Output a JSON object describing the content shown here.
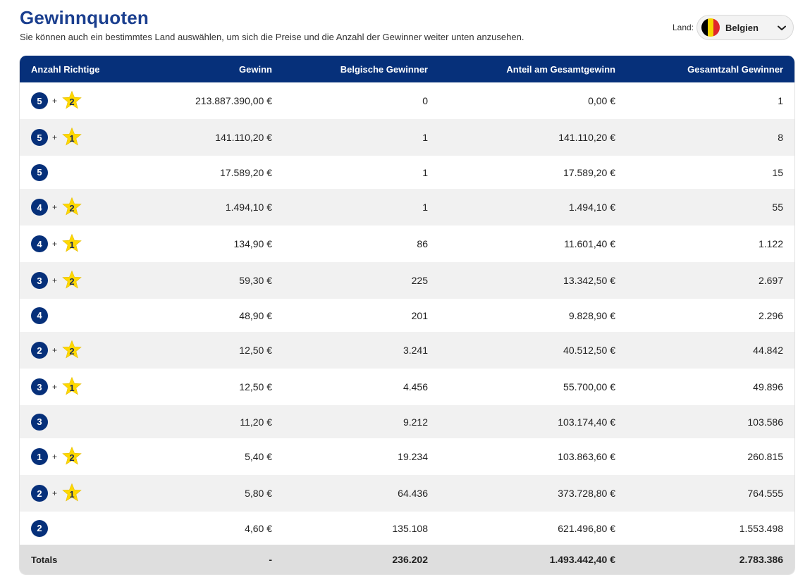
{
  "header": {
    "title": "Gewinnquoten",
    "subtitle": "Sie können auch ein bestimmtes Land auswählen, um sich die Preise und die Anzahl der Gewinner weiter unten anzusehen."
  },
  "country": {
    "label": "Land:",
    "selected": "Belgien",
    "flag_colors": [
      "#000000",
      "#f5d500",
      "#e0262b"
    ]
  },
  "colors": {
    "header_bg": "#06307a",
    "ball": "#06307a",
    "star": "#ffd900"
  },
  "table": {
    "columns": [
      "Anzahl Richtige",
      "Gewinn",
      "Belgische Gewinner",
      "Anteil am Gesamtgewinn",
      "Gesamtzahl Gewinner"
    ],
    "rows": [
      {
        "main": "5",
        "star": "2",
        "prize": "213.887.390,00 €",
        "local": "0",
        "share": "0,00 €",
        "total": "1"
      },
      {
        "main": "5",
        "star": "1",
        "prize": "141.110,20 €",
        "local": "1",
        "share": "141.110,20 €",
        "total": "8"
      },
      {
        "main": "5",
        "star": null,
        "prize": "17.589,20 €",
        "local": "1",
        "share": "17.589,20 €",
        "total": "15"
      },
      {
        "main": "4",
        "star": "2",
        "prize": "1.494,10 €",
        "local": "1",
        "share": "1.494,10 €",
        "total": "55"
      },
      {
        "main": "4",
        "star": "1",
        "prize": "134,90 €",
        "local": "86",
        "share": "11.601,40 €",
        "total": "1.122"
      },
      {
        "main": "3",
        "star": "2",
        "prize": "59,30 €",
        "local": "225",
        "share": "13.342,50 €",
        "total": "2.697"
      },
      {
        "main": "4",
        "star": null,
        "prize": "48,90 €",
        "local": "201",
        "share": "9.828,90 €",
        "total": "2.296"
      },
      {
        "main": "2",
        "star": "2",
        "prize": "12,50 €",
        "local": "3.241",
        "share": "40.512,50 €",
        "total": "44.842"
      },
      {
        "main": "3",
        "star": "1",
        "prize": "12,50 €",
        "local": "4.456",
        "share": "55.700,00 €",
        "total": "49.896"
      },
      {
        "main": "3",
        "star": null,
        "prize": "11,20 €",
        "local": "9.212",
        "share": "103.174,40 €",
        "total": "103.586"
      },
      {
        "main": "1",
        "star": "2",
        "prize": "5,40 €",
        "local": "19.234",
        "share": "103.863,60 €",
        "total": "260.815"
      },
      {
        "main": "2",
        "star": "1",
        "prize": "5,80 €",
        "local": "64.436",
        "share": "373.728,80 €",
        "total": "764.555"
      },
      {
        "main": "2",
        "star": null,
        "prize": "4,60 €",
        "local": "135.108",
        "share": "621.496,80 €",
        "total": "1.553.498"
      }
    ],
    "plus_sign": "+",
    "totals": {
      "label": "Totals",
      "prize": "-",
      "local": "236.202",
      "share": "1.493.442,40 €",
      "total": "2.783.386"
    }
  }
}
